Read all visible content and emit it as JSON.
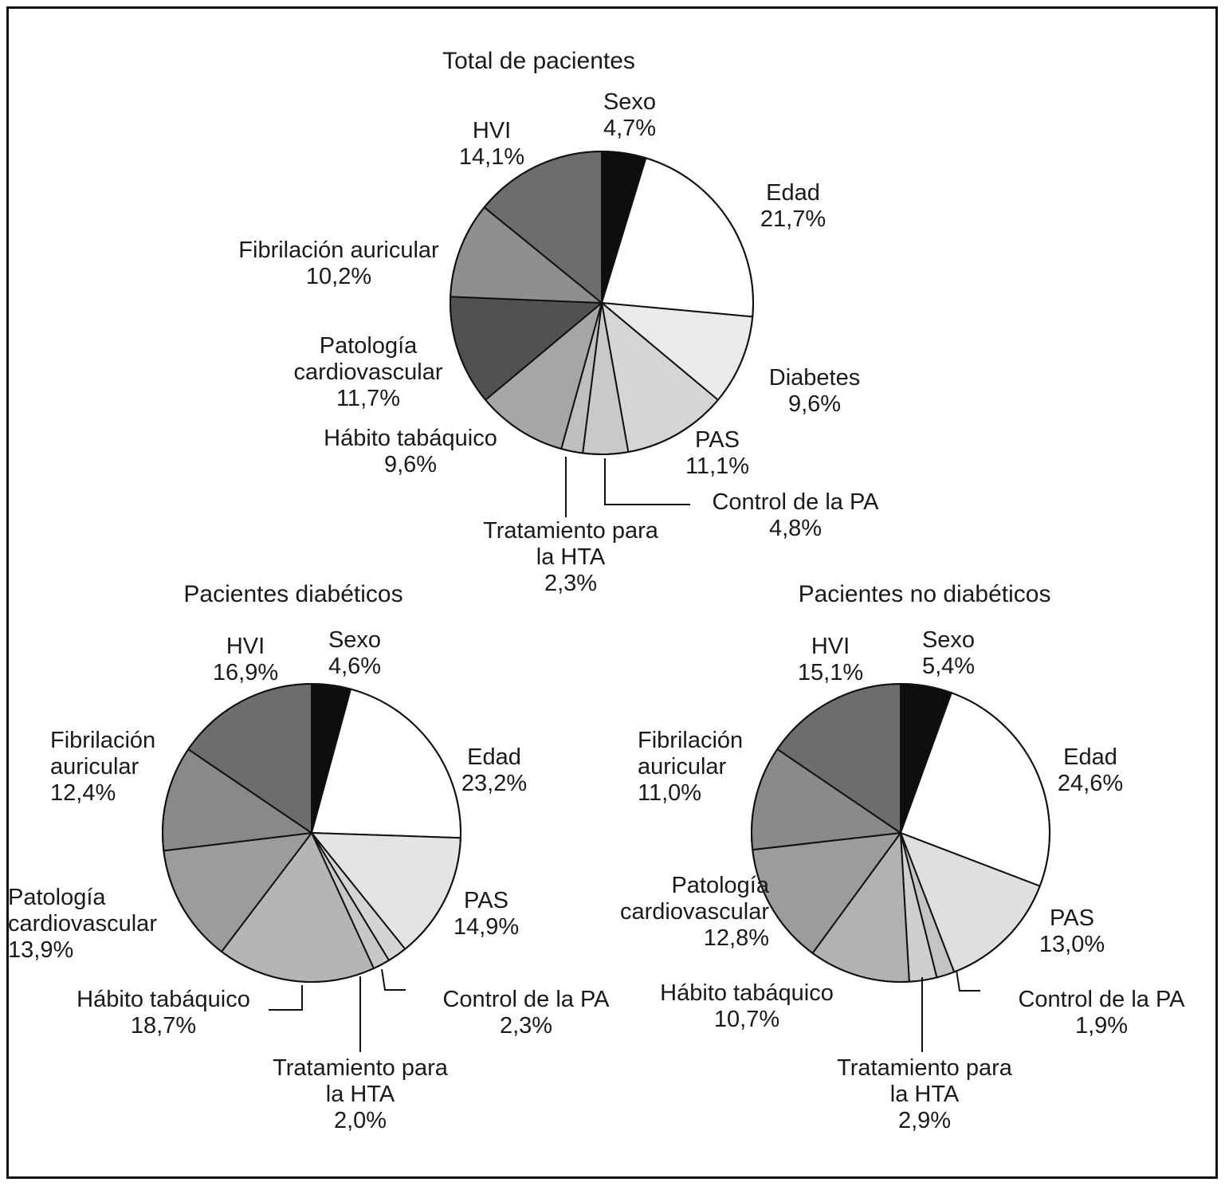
{
  "figure_titles": {
    "total": "Total de pacientes",
    "diabeticos": "Pacientes diabéticos",
    "no_diabeticos": "Pacientes no diabéticos"
  },
  "chart_data": [
    {
      "id": "total",
      "type": "pie",
      "title": "Total de pacientes",
      "legend_position": "around-slices",
      "direction": "clockwise",
      "start_angle_deg": 0,
      "segments": [
        {
          "key": "sexo",
          "label": "Sexo",
          "label_lines": [
            "Sexo",
            "4,7%"
          ],
          "value": 4.7,
          "display": "4,7%",
          "color": "#0e0e0e"
        },
        {
          "key": "edad",
          "label": "Edad",
          "label_lines": [
            "Edad",
            "21,7%"
          ],
          "value": 21.7,
          "display": "21,7%",
          "color": "#ffffff"
        },
        {
          "key": "diabetes",
          "label": "Diabetes",
          "label_lines": [
            "Diabetes",
            "9,6%"
          ],
          "value": 9.6,
          "display": "9,6%",
          "color": "#eaeaea"
        },
        {
          "key": "pas",
          "label": "PAS",
          "label_lines": [
            "PAS",
            "11,1%"
          ],
          "value": 11.1,
          "display": "11,1%",
          "color": "#d5d5d5"
        },
        {
          "key": "control",
          "label": "Control de la PA",
          "label_lines": [
            "Control de la PA",
            "4,8%"
          ],
          "value": 4.8,
          "display": "4,8%",
          "color": "#c9c9c9"
        },
        {
          "key": "tratamiento",
          "label": "Tratamiento para la HTA",
          "label_lines": [
            "Tratamiento para",
            "la HTA",
            "2,3%"
          ],
          "value": 2.3,
          "display": "2,3%",
          "color": "#bfbfbf"
        },
        {
          "key": "habito",
          "label": "Hábito tabáquico",
          "label_lines": [
            "Hábito tabáquico",
            "9,6%"
          ],
          "value": 9.6,
          "display": "9,6%",
          "color": "#a6a6a6"
        },
        {
          "key": "patologia",
          "label": "Patología cardiovascular",
          "label_lines": [
            "Patología",
            "cardiovascular",
            "11,7%"
          ],
          "value": 11.7,
          "display": "11,7%",
          "color": "#515151"
        },
        {
          "key": "fibrilacion",
          "label": "Fibrilación auricular",
          "label_lines": [
            "Fibrilación auricular",
            "10,2%"
          ],
          "value": 10.2,
          "display": "10,2%",
          "color": "#8f8f8f"
        },
        {
          "key": "hvi",
          "label": "HVI",
          "label_lines": [
            "HVI",
            "14,1%"
          ],
          "value": 14.1,
          "display": "14,1%",
          "color": "#6d6d6d"
        }
      ]
    },
    {
      "id": "diabeticos",
      "type": "pie",
      "title": "Pacientes diabéticos",
      "legend_position": "around-slices",
      "direction": "clockwise",
      "start_angle_deg": 0,
      "segments": [
        {
          "key": "sexo",
          "label": "Sexo",
          "label_lines": [
            "Sexo",
            "4,6%"
          ],
          "value": 4.6,
          "display": "4,6%",
          "color": "#0e0e0e"
        },
        {
          "key": "edad",
          "label": "Edad",
          "label_lines": [
            "Edad",
            "23,2%"
          ],
          "value": 23.2,
          "display": "23,2%",
          "color": "#ffffff"
        },
        {
          "key": "pas",
          "label": "PAS",
          "label_lines": [
            "PAS",
            "14,9%"
          ],
          "value": 14.9,
          "display": "14,9%",
          "color": "#e4e4e4"
        },
        {
          "key": "control",
          "label": "Control de la PA",
          "label_lines": [
            "Control de la PA",
            "2,3%"
          ],
          "value": 2.3,
          "display": "2,3%",
          "color": "#d4d4d4"
        },
        {
          "key": "tratamiento",
          "label": "Tratamiento para la HTA",
          "label_lines": [
            "Tratamiento para",
            "la HTA",
            "2,0%"
          ],
          "value": 2.0,
          "display": "2,0%",
          "color": "#c8c8c8"
        },
        {
          "key": "habito",
          "label": "Hábito tabáquico",
          "label_lines": [
            "Hábito tabáquico",
            "18,7%"
          ],
          "value": 18.7,
          "display": "18,7%",
          "color": "#b5b5b5"
        },
        {
          "key": "patologia",
          "label": "Patología cardiovascular",
          "label_lines": [
            "Patología",
            "cardiovascular",
            "13,9%"
          ],
          "value": 13.9,
          "display": "13,9%",
          "color": "#9c9c9c"
        },
        {
          "key": "fibrilacion",
          "label": "Fibrilación auricular",
          "label_lines": [
            "Fibrilación",
            "auricular",
            "12,4%"
          ],
          "value": 12.4,
          "display": "12,4%",
          "color": "#898989"
        },
        {
          "key": "hvi",
          "label": "HVI",
          "label_lines": [
            "HVI",
            "16,9%"
          ],
          "value": 16.9,
          "display": "16,9%",
          "color": "#6d6d6d"
        }
      ]
    },
    {
      "id": "no_diabeticos",
      "type": "pie",
      "title": "Pacientes no diabéticos",
      "legend_position": "around-slices",
      "direction": "clockwise",
      "start_angle_deg": 0,
      "segments": [
        {
          "key": "sexo",
          "label": "Sexo",
          "label_lines": [
            "Sexo",
            "5,4%"
          ],
          "value": 5.4,
          "display": "5,4%",
          "color": "#0e0e0e"
        },
        {
          "key": "edad",
          "label": "Edad",
          "label_lines": [
            "Edad",
            "24,6%"
          ],
          "value": 24.6,
          "display": "24,6%",
          "color": "#ffffff"
        },
        {
          "key": "pas",
          "label": "PAS",
          "label_lines": [
            "PAS",
            "13,0%"
          ],
          "value": 13.0,
          "display": "13,0%",
          "color": "#dfdfdf"
        },
        {
          "key": "control",
          "label": "Control de la PA",
          "label_lines": [
            "Control de la PA",
            "1,9%"
          ],
          "value": 1.9,
          "display": "1,9%",
          "color": "#c4c4c4"
        },
        {
          "key": "tratamiento",
          "label": "Tratamiento para la HTA",
          "label_lines": [
            "Tratamiento para",
            "la HTA",
            "2,9%"
          ],
          "value": 2.9,
          "display": "2,9%",
          "color": "#cfcfcf"
        },
        {
          "key": "habito",
          "label": "Hábito tabáquico",
          "label_lines": [
            "Hábito tabáquico",
            "10,7%"
          ],
          "value": 10.7,
          "display": "10,7%",
          "color": "#b2b2b2"
        },
        {
          "key": "patologia",
          "label": "Patología cardiovascular",
          "label_lines": [
            "Patología",
            "cardiovascular",
            "12,8%"
          ],
          "value": 12.8,
          "display": "12,8%",
          "color": "#9c9c9c"
        },
        {
          "key": "fibrilacion",
          "label": "Fibrilación auricular",
          "label_lines": [
            "Fibrilación",
            "auricular",
            "11,0%"
          ],
          "value": 11.0,
          "display": "11,0%",
          "color": "#8a8a8a"
        },
        {
          "key": "hvi",
          "label": "HVI",
          "label_lines": [
            "HVI",
            "15,1%"
          ],
          "value": 15.1,
          "display": "15,1%",
          "color": "#6d6d6d"
        }
      ]
    }
  ]
}
